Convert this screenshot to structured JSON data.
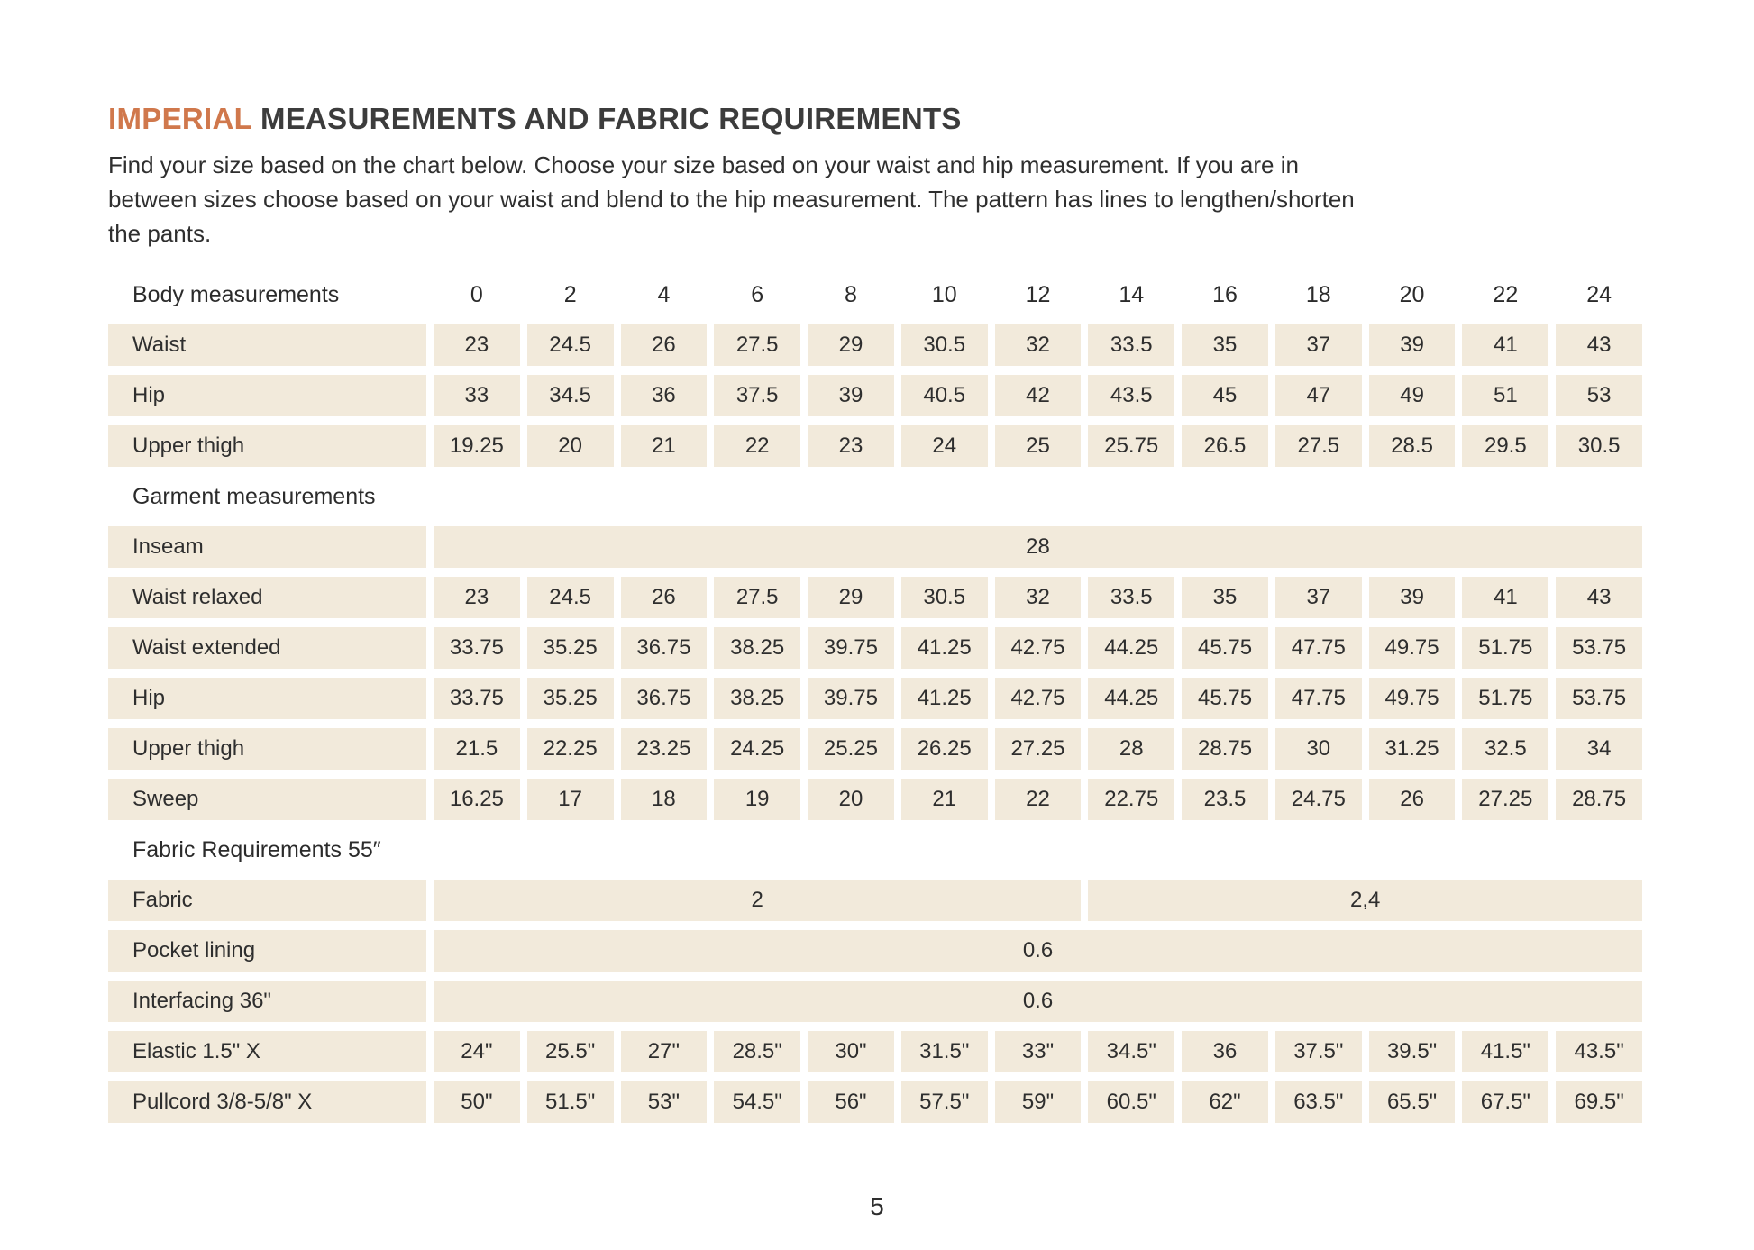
{
  "colors": {
    "accent": "#d0784c",
    "cell_bg": "#f2eadb",
    "text": "#2e2e2e"
  },
  "header": {
    "title_accent": "IMPERIAL",
    "title_rest": " MEASUREMENTS AND FABRIC REQUIREMENTS",
    "intro": "Find your size based on the chart below. Choose your size based on your waist and hip measurement. If you are in\nbetween sizes choose based on your waist and blend to the hip measurement. The pattern has lines to lengthen/shorten\nthe pants."
  },
  "table": {
    "size_header": {
      "label": "Body measurements",
      "sizes": [
        "0",
        "2",
        "4",
        "6",
        "8",
        "10",
        "12",
        "14",
        "16",
        "18",
        "20",
        "22",
        "24"
      ]
    },
    "sections": [
      {
        "title": null,
        "rows": [
          {
            "label": "Waist",
            "cells": [
              "23",
              "24.5",
              "26",
              "27.5",
              "29",
              "30.5",
              "32",
              "33.5",
              "35",
              "37",
              "39",
              "41",
              "43"
            ]
          },
          {
            "label": "Hip",
            "cells": [
              "33",
              "34.5",
              "36",
              "37.5",
              "39",
              "40.5",
              "42",
              "43.5",
              "45",
              "47",
              "49",
              "51",
              "53"
            ]
          },
          {
            "label": "Upper thigh",
            "cells": [
              "19.25",
              "20",
              "21",
              "22",
              "23",
              "24",
              "25",
              "25.75",
              "26.5",
              "27.5",
              "28.5",
              "29.5",
              "30.5"
            ]
          }
        ]
      },
      {
        "title": "Garment measurements",
        "rows": [
          {
            "label": "Inseam",
            "cells": [
              {
                "value": "28",
                "span": 13
              }
            ]
          },
          {
            "label": "Waist relaxed",
            "cells": [
              "23",
              "24.5",
              "26",
              "27.5",
              "29",
              "30.5",
              "32",
              "33.5",
              "35",
              "37",
              "39",
              "41",
              "43"
            ]
          },
          {
            "label": "Waist extended",
            "cells": [
              "33.75",
              "35.25",
              "36.75",
              "38.25",
              "39.75",
              "41.25",
              "42.75",
              "44.25",
              "45.75",
              "47.75",
              "49.75",
              "51.75",
              "53.75"
            ]
          },
          {
            "label": "Hip",
            "cells": [
              "33.75",
              "35.25",
              "36.75",
              "38.25",
              "39.75",
              "41.25",
              "42.75",
              "44.25",
              "45.75",
              "47.75",
              "49.75",
              "51.75",
              "53.75"
            ]
          },
          {
            "label": "Upper thigh",
            "cells": [
              "21.5",
              "22.25",
              "23.25",
              "24.25",
              "25.25",
              "26.25",
              "27.25",
              "28",
              "28.75",
              "30",
              "31.25",
              "32.5",
              "34"
            ]
          },
          {
            "label": "Sweep",
            "cells": [
              "16.25",
              "17",
              "18",
              "19",
              "20",
              "21",
              "22",
              "22.75",
              "23.5",
              "24.75",
              "26",
              "27.25",
              "28.75"
            ]
          }
        ]
      },
      {
        "title": "Fabric Requirements 55″",
        "rows": [
          {
            "label": "Fabric",
            "cells": [
              {
                "value": "2",
                "span": 7
              },
              {
                "value": "2,4",
                "span": 6
              }
            ]
          },
          {
            "label": "Pocket lining",
            "cells": [
              {
                "value": "0.6",
                "span": 13
              }
            ]
          },
          {
            "label": "Interfacing 36\"",
            "cells": [
              {
                "value": "0.6",
                "span": 13
              }
            ]
          },
          {
            "label": "Elastic 1.5\" X",
            "cells": [
              "24\"",
              "25.5\"",
              "27\"",
              "28.5\"",
              "30\"",
              "31.5\"",
              "33\"",
              "34.5\"",
              "36",
              "37.5\"",
              "39.5\"",
              "41.5\"",
              "43.5\""
            ]
          },
          {
            "label": "Pullcord 3/8-5/8\" X",
            "cells": [
              "50\"",
              "51.5\"",
              "53\"",
              "54.5\"",
              "56\"",
              "57.5\"",
              "59\"",
              "60.5\"",
              "62\"",
              "63.5\"",
              "65.5\"",
              "67.5\"",
              "69.5\""
            ]
          }
        ]
      }
    ]
  },
  "footer": {
    "page_number": "5"
  }
}
